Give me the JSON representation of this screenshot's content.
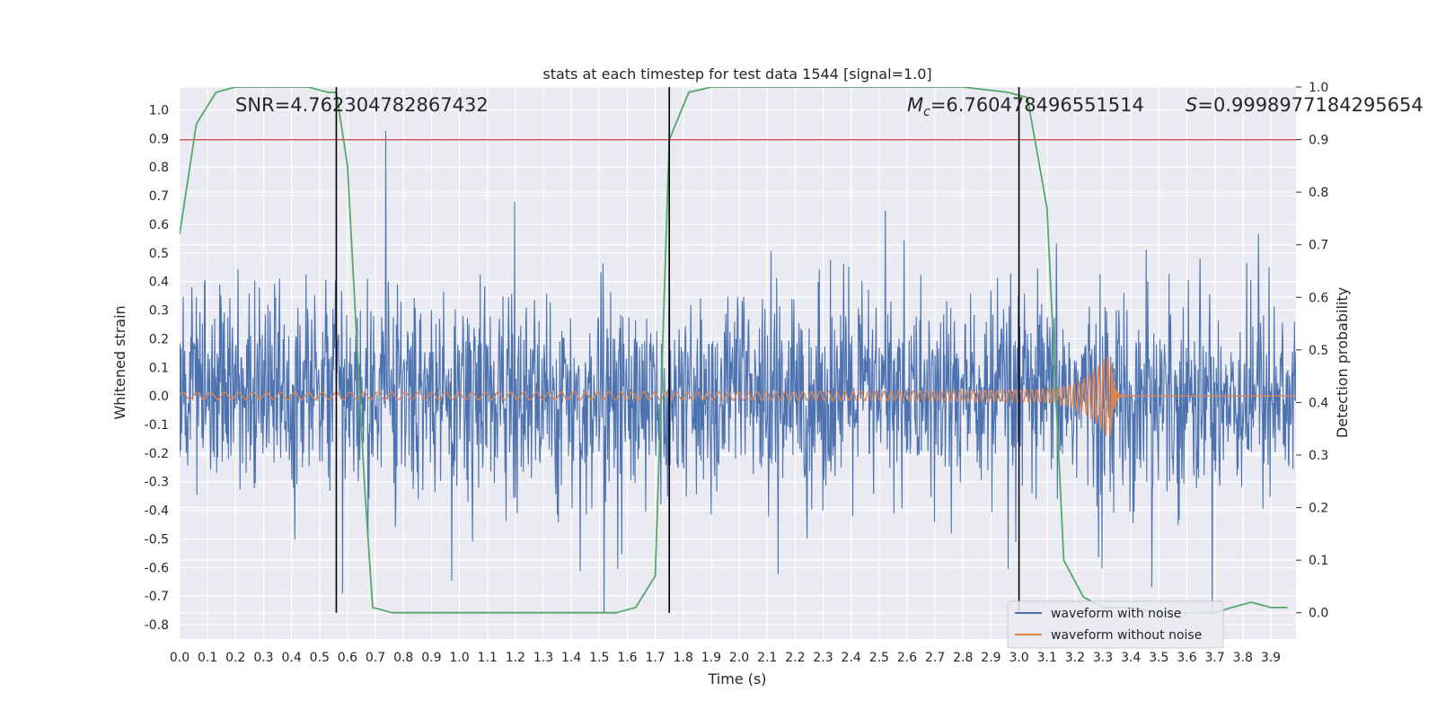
{
  "chart_data": {
    "type": "line",
    "title": "stats at each timestep for test data 1544 [signal=1.0]",
    "xlabel": "Time (s)",
    "ylabel": "Whitened strain",
    "y2label": "Detection probability",
    "xlim": [
      0.0,
      3.99
    ],
    "ylim": [
      -0.85,
      1.08
    ],
    "y2lim": [
      -0.05,
      1.0
    ],
    "x_ticks": [
      "0.0",
      "0.1",
      "0.2",
      "0.3",
      "0.4",
      "0.5",
      "0.6",
      "0.7",
      "0.8",
      "0.9",
      "1.0",
      "1.1",
      "1.2",
      "1.3",
      "1.4",
      "1.5",
      "1.6",
      "1.7",
      "1.8",
      "1.9",
      "2.0",
      "2.1",
      "2.2",
      "2.3",
      "2.4",
      "2.5",
      "2.6",
      "2.7",
      "2.8",
      "2.9",
      "3.0",
      "3.1",
      "3.2",
      "3.3",
      "3.4",
      "3.5",
      "3.6",
      "3.7",
      "3.8",
      "3.9"
    ],
    "y_ticks": [
      "1.0",
      "0.9",
      "0.8",
      "0.7",
      "0.6",
      "0.5",
      "0.4",
      "0.3",
      "0.2",
      "0.1",
      "0.0",
      "-0.1",
      "-0.2",
      "-0.3",
      "-0.4",
      "-0.5",
      "-0.6",
      "-0.7",
      "-0.8"
    ],
    "y2_ticks": [
      "1.0",
      "0.9",
      "0.8",
      "0.7",
      "0.6",
      "0.5",
      "0.4",
      "0.3",
      "0.2",
      "0.1",
      "0.0"
    ],
    "annotations": {
      "snr": "SNR=4.762304782867432",
      "mc_symbol": "M",
      "mc_sub": "c",
      "mc_value": "=6.760478496551514",
      "s_symbol": "S",
      "s_value": "=0.9998977184295654"
    },
    "series": [
      {
        "name": "waveform with noise",
        "color": "#4c72b0",
        "noise_envelope": [
          -0.76,
          1.0
        ],
        "seed": 1544
      },
      {
        "name": "waveform without noise",
        "color": "#dd8452",
        "chirp": {
          "merger_time": 3.33,
          "base_amplitude": 0.012,
          "peak_amplitude": 0.14,
          "f_start": 20,
          "f_end": 60
        }
      },
      {
        "name": "detection probability",
        "color": "#55a868",
        "axis": "right",
        "x": [
          0.0,
          0.06,
          0.13,
          0.2,
          0.26,
          0.33,
          0.4,
          0.46,
          0.53,
          0.56,
          0.6,
          0.63,
          0.66,
          0.69,
          0.76,
          0.83,
          0.9,
          1.0,
          1.1,
          1.2,
          1.3,
          1.4,
          1.5,
          1.56,
          1.63,
          1.7,
          1.75,
          1.82,
          1.9,
          2.0,
          2.2,
          2.4,
          2.6,
          2.8,
          2.96,
          3.03,
          3.1,
          3.16,
          3.23,
          3.3,
          3.4,
          3.5,
          3.6,
          3.7,
          3.76,
          3.83,
          3.9,
          3.96
        ],
        "y": [
          0.72,
          0.93,
          0.99,
          1.0,
          1.0,
          1.0,
          1.0,
          1.0,
          0.99,
          0.99,
          0.85,
          0.55,
          0.25,
          0.01,
          0.0,
          0.0,
          0.0,
          0.0,
          0.0,
          0.0,
          0.0,
          0.0,
          0.0,
          0.0,
          0.01,
          0.07,
          0.9,
          0.99,
          1.0,
          1.0,
          1.0,
          1.0,
          1.0,
          1.0,
          0.99,
          0.98,
          0.77,
          0.1,
          0.03,
          0.01,
          0.01,
          0.0,
          0.0,
          0.0,
          0.01,
          0.02,
          0.01,
          0.01
        ]
      },
      {
        "name": "threshold",
        "color": "#c44e52",
        "axis": "right",
        "value": 0.9
      }
    ],
    "vertical_lines": [
      0.56,
      1.75,
      3.0
    ],
    "legend": {
      "position": "bottom-right",
      "entries": [
        "waveform with noise",
        "waveform without noise"
      ]
    }
  },
  "colors": {
    "background": "#eaeaf2",
    "grid": "#ffffff",
    "text": "#262626",
    "noise": "#4c72b0",
    "clean": "#dd8452",
    "probability": "#55a868",
    "threshold": "#c44e52",
    "marker": "#000000"
  }
}
